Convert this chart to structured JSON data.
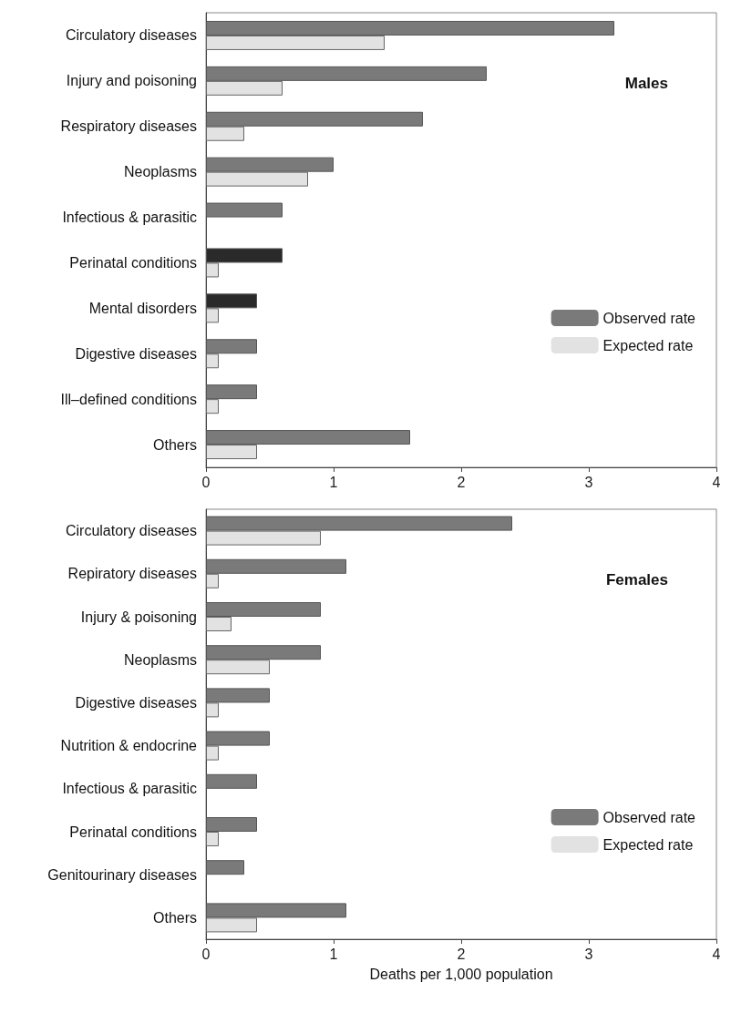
{
  "chart_data": [
    {
      "type": "bar",
      "orientation": "horizontal",
      "title": "Males",
      "categories": [
        "Circulatory diseases",
        "Injury and poisoning",
        "Respiratory diseases",
        "Neoplasms",
        "Infectious & parasitic",
        "Perinatal conditions",
        "Mental disorders",
        "Digestive diseases",
        "Ill–defined conditions",
        "Others"
      ],
      "series": [
        {
          "name": "Observed rate",
          "color": "#7a7a7a",
          "colors": [
            "#7a7a7a",
            "#7a7a7a",
            "#7a7a7a",
            "#7a7a7a",
            "#7a7a7a",
            "#2a2a2a",
            "#2a2a2a",
            "#7a7a7a",
            "#7a7a7a",
            "#7a7a7a"
          ],
          "values": [
            3.2,
            2.2,
            1.7,
            1.0,
            0.6,
            0.6,
            0.4,
            0.4,
            0.4,
            1.6
          ]
        },
        {
          "name": "Expected rate",
          "color": "#e2e2e2",
          "values": [
            1.4,
            0.6,
            0.3,
            0.8,
            null,
            0.1,
            0.1,
            0.1,
            0.1,
            0.4
          ]
        }
      ],
      "xlim": [
        0,
        4
      ],
      "xticks": [
        0,
        1,
        2,
        3,
        4
      ],
      "legend": "right"
    },
    {
      "type": "bar",
      "orientation": "horizontal",
      "title": "Females",
      "xlabel": "Deaths per 1,000 population",
      "categories": [
        "Circulatory diseases",
        "Repiratory diseases",
        "Injury & poisoning",
        "Neoplasms",
        "Digestive diseases",
        "Nutrition & endocrine",
        "Infectious & parasitic",
        "Perinatal conditions",
        "Genitourinary diseases",
        "Others"
      ],
      "series": [
        {
          "name": "Observed rate",
          "color": "#7a7a7a",
          "values": [
            2.4,
            1.1,
            0.9,
            0.9,
            0.5,
            0.5,
            0.4,
            0.4,
            0.3,
            1.1
          ]
        },
        {
          "name": "Expected rate",
          "color": "#e2e2e2",
          "values": [
            0.9,
            0.1,
            0.2,
            0.5,
            0.1,
            0.1,
            null,
            0.1,
            null,
            0.4
          ]
        }
      ],
      "xlim": [
        0,
        4
      ],
      "xticks": [
        0,
        1,
        2,
        3,
        4
      ],
      "legend": "right"
    }
  ]
}
